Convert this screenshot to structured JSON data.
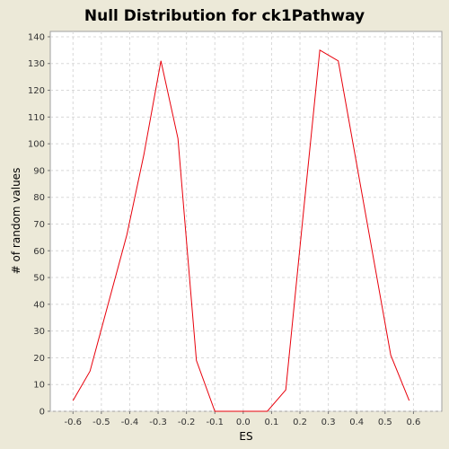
{
  "chart_data": {
    "type": "line",
    "title": "Null Distribution for ck1Pathway",
    "xlabel": "ES",
    "ylabel": "# of random values",
    "xlim": [
      -0.68,
      0.7
    ],
    "ylim": [
      0,
      142
    ],
    "x_ticks": [
      "-0.6",
      "-0.5",
      "-0.4",
      "-0.3",
      "-0.2",
      "-0.1",
      "0.0",
      "0.1",
      "0.2",
      "0.3",
      "0.4",
      "0.5",
      "0.6"
    ],
    "y_ticks": [
      "0",
      "10",
      "20",
      "30",
      "40",
      "50",
      "60",
      "70",
      "80",
      "90",
      "100",
      "110",
      "120",
      "130",
      "140"
    ],
    "grid": true,
    "series": [
      {
        "color": "#e8000b",
        "x": [
          -0.6,
          -0.54,
          -0.41,
          -0.35,
          -0.29,
          -0.23,
          -0.165,
          -0.1,
          0.085,
          0.15,
          0.21,
          0.27,
          0.335,
          0.52,
          0.585
        ],
        "y": [
          4,
          15,
          66,
          96,
          131,
          102,
          19,
          0,
          0,
          8,
          72,
          135,
          131,
          21,
          4
        ]
      }
    ],
    "colors": {
      "background": "#ece9d8",
      "plot_background": "#ffffff",
      "grid": "#d8d8d8"
    }
  }
}
